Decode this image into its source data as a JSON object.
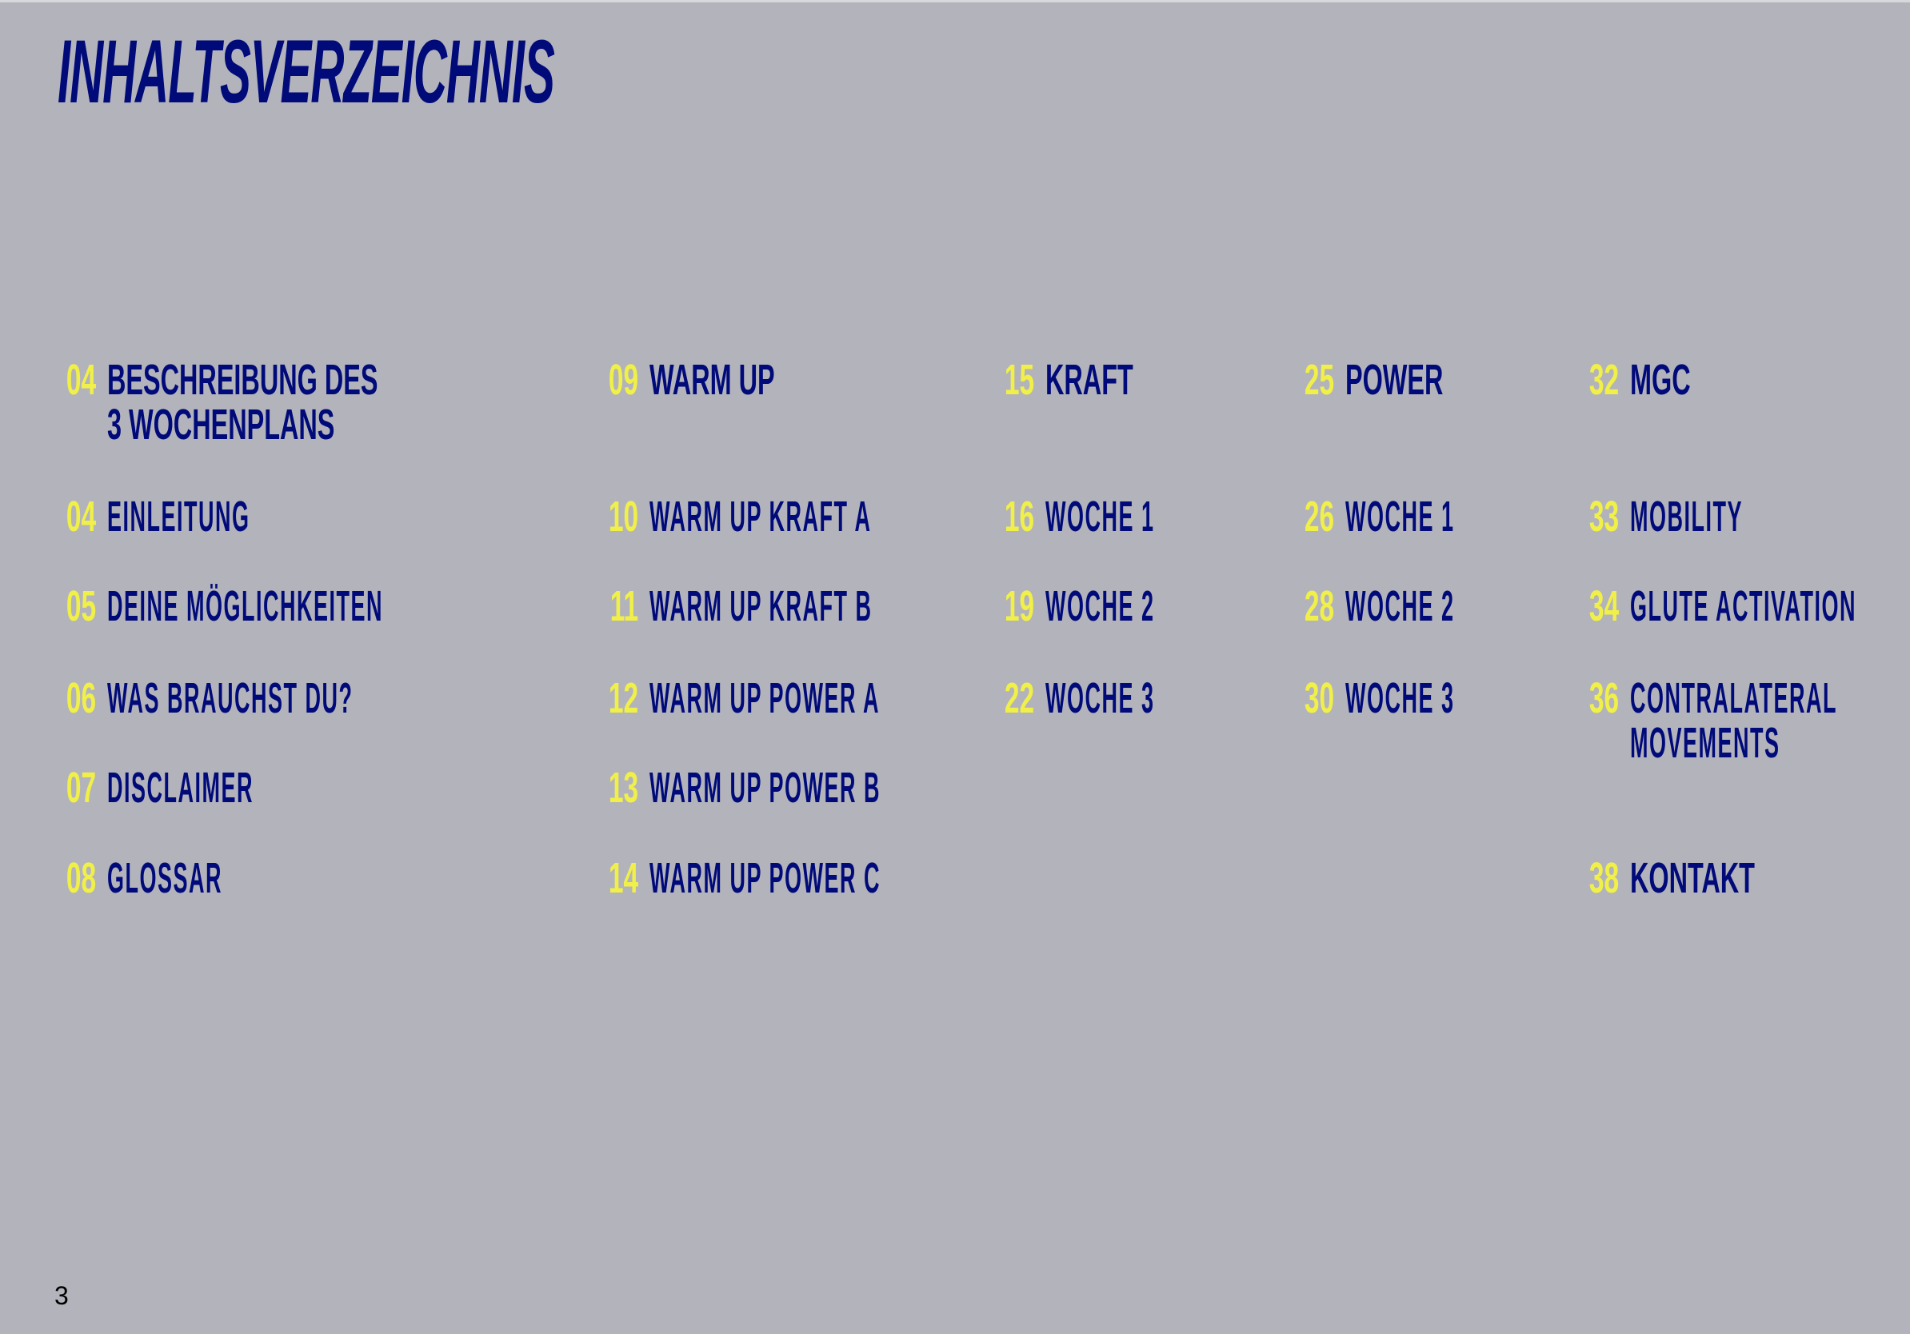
{
  "title": "INHALTSVERZEICHNIS",
  "page_number": "3",
  "colors": {
    "background": "#b3b3bc",
    "text": "#000a78",
    "page_numbers": "#f0f048"
  },
  "columns": [
    {
      "entries": [
        {
          "page": "04",
          "label": "BESCHREIBUNG DES",
          "label2": "3 WOCHENPLANS",
          "heading": true
        },
        {
          "page": "04",
          "label": "EINLEITUNG"
        },
        {
          "page": "05",
          "label": "DEINE MÖGLICHKEITEN"
        },
        {
          "page": "06",
          "label": "WAS BRAUCHST DU?"
        },
        {
          "page": "07",
          "label": "DISCLAIMER"
        },
        {
          "page": "08",
          "label": "GLOSSAR"
        }
      ]
    },
    {
      "entries": [
        {
          "page": "09",
          "label": "WARM UP",
          "heading": true
        },
        {
          "page": "10",
          "label": "WARM UP KRAFT A"
        },
        {
          "page": "11",
          "label": "WARM UP KRAFT B"
        },
        {
          "page": "12",
          "label": "WARM UP POWER A"
        },
        {
          "page": "13",
          "label": "WARM UP POWER B"
        },
        {
          "page": "14",
          "label": "WARM UP POWER C"
        }
      ]
    },
    {
      "entries": [
        {
          "page": "15",
          "label": "KRAFT",
          "heading": true
        },
        {
          "page": "16",
          "label": "WOCHE 1"
        },
        {
          "page": "19",
          "label": "WOCHE 2"
        },
        {
          "page": "22",
          "label": "WOCHE 3"
        }
      ]
    },
    {
      "entries": [
        {
          "page": "25",
          "label": "POWER",
          "heading": true
        },
        {
          "page": "26",
          "label": "WOCHE 1"
        },
        {
          "page": "28",
          "label": "WOCHE 2"
        },
        {
          "page": "30",
          "label": "WOCHE 3"
        }
      ]
    },
    {
      "entries": [
        {
          "page": "32",
          "label": "MGC",
          "heading": true
        },
        {
          "page": "33",
          "label": "MOBILITY"
        },
        {
          "page": "34",
          "label": "GLUTE ACTIVATION"
        },
        {
          "page": "36",
          "label": "CONTRALATERAL",
          "label2": "MOVEMENTS"
        },
        {
          "page": "38",
          "label": "KONTAKT",
          "heading": true
        }
      ]
    }
  ]
}
